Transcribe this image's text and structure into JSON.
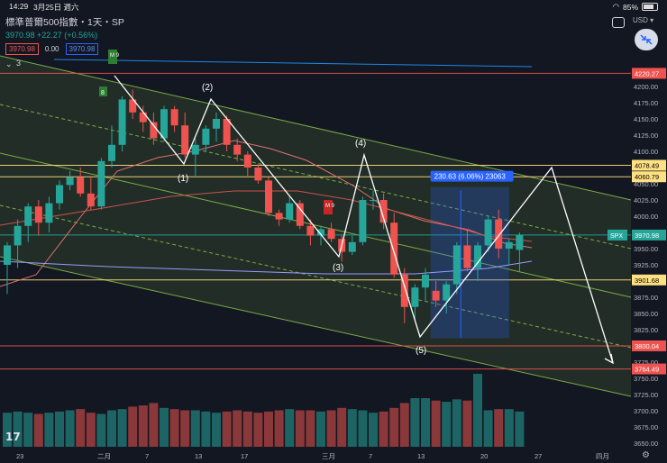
{
  "status_bar": {
    "time": "14:29",
    "date": "3月25日 週六",
    "battery": "85%"
  },
  "legend": {
    "title": "標準普爾500指數・1天・SP",
    "change": "3970.98 +22.27 (+0.56%)",
    "bid": "3970.98",
    "spread": "0.00",
    "ask": "3970.98",
    "indicator_count": "3"
  },
  "currency": "USD",
  "colors": {
    "up": "#26a69a",
    "down": "#ef5350",
    "channel": "#8bc34a",
    "highlight": "#2962ff"
  },
  "chart_data": {
    "type": "candlestick",
    "symbol": "SPX",
    "ylim": [
      3650,
      4250
    ],
    "y_ticks": [
      3650,
      3675,
      3700,
      3725,
      3750,
      3775,
      3800,
      3825,
      3850,
      3875,
      3900,
      3925,
      3950,
      3975,
      4000,
      4025,
      4050,
      4075,
      4100,
      4125,
      4150,
      4175,
      4200,
      4225
    ],
    "x_labels": [
      "23",
      "二月",
      "7",
      "13",
      "17",
      "三月",
      "7",
      "13",
      "20",
      "27",
      "四月"
    ],
    "price_labels": [
      {
        "value": 4220.27,
        "color": "#ef5350",
        "text": "4220.27"
      },
      {
        "value": 4078.49,
        "color": "#ffe082",
        "text": "4078.49"
      },
      {
        "value": 4060.79,
        "color": "#ffe082",
        "text": "4060.79"
      },
      {
        "value": 3970.98,
        "color": "#26a69a",
        "text": "3970.98"
      },
      {
        "value": 3901.68,
        "color": "#ffe082",
        "text": "3901.68"
      },
      {
        "value": 3800.04,
        "color": "#ef5350",
        "text": "3800.04"
      },
      {
        "value": 3764.49,
        "color": "#ef5350",
        "text": "3764.49"
      }
    ],
    "symbol_tag": "SPX",
    "candles": [
      {
        "o": 3925,
        "h": 3960,
        "l": 3880,
        "c": 3955
      },
      {
        "o": 3955,
        "h": 3995,
        "l": 3920,
        "c": 3985
      },
      {
        "o": 3985,
        "h": 4020,
        "l": 3960,
        "c": 4015
      },
      {
        "o": 4015,
        "h": 4025,
        "l": 3970,
        "c": 3990
      },
      {
        "o": 3990,
        "h": 4030,
        "l": 3975,
        "c": 4020
      },
      {
        "o": 4020,
        "h": 4055,
        "l": 4010,
        "c": 4048
      },
      {
        "o": 4048,
        "h": 4070,
        "l": 4040,
        "c": 4060
      },
      {
        "o": 4060,
        "h": 4075,
        "l": 4030,
        "c": 4035
      },
      {
        "o": 4035,
        "h": 4060,
        "l": 4010,
        "c": 4015
      },
      {
        "o": 4015,
        "h": 4090,
        "l": 4010,
        "c": 4085
      },
      {
        "o": 4085,
        "h": 4140,
        "l": 4075,
        "c": 4110
      },
      {
        "o": 4110,
        "h": 4185,
        "l": 4100,
        "c": 4180
      },
      {
        "o": 4180,
        "h": 4195,
        "l": 4150,
        "c": 4160
      },
      {
        "o": 4160,
        "h": 4170,
        "l": 4130,
        "c": 4145
      },
      {
        "o": 4145,
        "h": 4160,
        "l": 4110,
        "c": 4120
      },
      {
        "o": 4120,
        "h": 4170,
        "l": 4115,
        "c": 4165
      },
      {
        "o": 4165,
        "h": 4170,
        "l": 4130,
        "c": 4140
      },
      {
        "o": 4140,
        "h": 4160,
        "l": 4090,
        "c": 4095
      },
      {
        "o": 4095,
        "h": 4120,
        "l": 4060,
        "c": 4110
      },
      {
        "o": 4110,
        "h": 4140,
        "l": 4100,
        "c": 4135
      },
      {
        "o": 4135,
        "h": 4160,
        "l": 4115,
        "c": 4150
      },
      {
        "o": 4150,
        "h": 4155,
        "l": 4100,
        "c": 4110
      },
      {
        "o": 4110,
        "h": 4120,
        "l": 4085,
        "c": 4095
      },
      {
        "o": 4095,
        "h": 4100,
        "l": 4060,
        "c": 4075
      },
      {
        "o": 4075,
        "h": 4080,
        "l": 4050,
        "c": 4055
      },
      {
        "o": 4055,
        "h": 4060,
        "l": 4000,
        "c": 4005
      },
      {
        "o": 4005,
        "h": 4010,
        "l": 3985,
        "c": 3995
      },
      {
        "o": 3995,
        "h": 4030,
        "l": 3990,
        "c": 4020
      },
      {
        "o": 4020,
        "h": 4025,
        "l": 3980,
        "c": 3985
      },
      {
        "o": 3985,
        "h": 3995,
        "l": 3955,
        "c": 3970
      },
      {
        "o": 3970,
        "h": 3985,
        "l": 3955,
        "c": 3980
      },
      {
        "o": 3980,
        "h": 3990,
        "l": 3960,
        "c": 3965
      },
      {
        "o": 3965,
        "h": 3970,
        "l": 3930,
        "c": 3945
      },
      {
        "o": 3945,
        "h": 3970,
        "l": 3940,
        "c": 3960
      },
      {
        "o": 3960,
        "h": 4030,
        "l": 3955,
        "c": 4025
      },
      {
        "o": 4025,
        "h": 4040,
        "l": 4010,
        "c": 4025
      },
      {
        "o": 4025,
        "h": 4035,
        "l": 3980,
        "c": 3990
      },
      {
        "o": 3990,
        "h": 4005,
        "l": 3905,
        "c": 3910
      },
      {
        "o": 3910,
        "h": 3920,
        "l": 3835,
        "c": 3860
      },
      {
        "o": 3860,
        "h": 3895,
        "l": 3840,
        "c": 3890
      },
      {
        "o": 3890,
        "h": 3920,
        "l": 3870,
        "c": 3910
      },
      {
        "o": 3885,
        "h": 3900,
        "l": 3860,
        "c": 3870
      },
      {
        "o": 3870,
        "h": 3900,
        "l": 3850,
        "c": 3895
      },
      {
        "o": 3895,
        "h": 3960,
        "l": 3880,
        "c": 3955
      },
      {
        "o": 3955,
        "h": 3980,
        "l": 3915,
        "c": 3920
      },
      {
        "o": 3920,
        "h": 3960,
        "l": 3900,
        "c": 3955
      },
      {
        "o": 3955,
        "h": 4000,
        "l": 3945,
        "c": 3995
      },
      {
        "o": 3995,
        "h": 4010,
        "l": 3935,
        "c": 3950
      },
      {
        "o": 3950,
        "h": 3965,
        "l": 3925,
        "c": 3960
      },
      {
        "o": 3948,
        "h": 3975,
        "l": 3915,
        "c": 3971
      }
    ],
    "volumes": [
      28,
      29,
      28,
      27,
      28,
      29,
      30,
      31,
      28,
      27,
      30,
      31,
      33,
      34,
      36,
      32,
      31,
      30,
      30,
      29,
      28,
      29,
      30,
      29,
      28,
      29,
      30,
      31,
      30,
      30,
      29,
      30,
      32,
      31,
      30,
      28,
      29,
      32,
      36,
      40,
      40,
      38,
      37,
      39,
      38,
      60,
      30,
      31,
      31,
      29
    ],
    "wave_labels": [
      "(1)",
      "(2)",
      "(3)",
      "(4)",
      "(5)"
    ],
    "measure_label": "230.63 (6.06%) 23063",
    "indicator_tags": [
      "M 9",
      "M 9",
      "8"
    ]
  }
}
